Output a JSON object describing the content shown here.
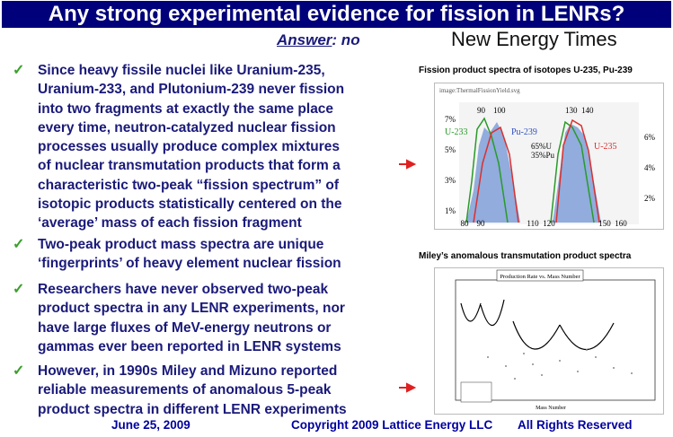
{
  "header": {
    "title": "Any strong experimental evidence for fission in LENRs?",
    "answer_label": "Answer",
    "answer_text": ": no",
    "logo": "New Energy Times"
  },
  "bullets": [
    {
      "lines": [
        "Since heavy fissile nuclei like Uranium-235,",
        "Uranium-233, and Plutonium-239 never fission",
        "into two fragments at exactly the same place",
        "every time, neutron-catalyzed nuclear fission",
        "processes usually produce complex mixtures",
        "of nuclear transmutation products that form a",
        "characteristic two-peak “fission spectrum” of",
        "isotopic products statistically centered on the",
        "‘average’ mass of each fission fragment"
      ]
    },
    {
      "lines": [
        "Two-peak product mass spectra are unique",
        "‘fingerprints’ of heavy element nuclear fission"
      ]
    },
    {
      "lines": [
        "Researchers have never observed two-peak",
        "product spectra in any LENR experiments, nor",
        "have large fluxes of MeV-energy neutrons or",
        "gammas ever been reported in LENR systems"
      ]
    },
    {
      "lines": [
        "However, in 1990s Miley and Mizuno reported",
        "reliable measurements of anomalous 5-peak",
        "product spectra in different LENR experiments"
      ]
    }
  ],
  "figures": [
    {
      "caption": "Fission product spectra of isotopes U-235, Pu-239",
      "image_title": "image:ThermalFissionYield.svg",
      "labels": [
        "90",
        "100",
        "130",
        "140",
        "U-233",
        "Pu-239",
        "65%U",
        "35%Pu",
        "U-235"
      ],
      "left_ticks": [
        "7%",
        "5%",
        "3%",
        "1%"
      ],
      "right_ticks": [
        "6%",
        "4%",
        "2%"
      ],
      "x_ticks": [
        "80",
        "90",
        "110",
        "120",
        "150",
        "160"
      ]
    },
    {
      "caption": "Miley’s anomalous transmutation product spectra",
      "image_title": "Production Rate vs. Mass Number",
      "x_label": "Mass Number"
    }
  ],
  "footer": {
    "date": "June 25, 2009",
    "copyright": "Copyright 2009 Lattice Energy LLC",
    "rights": "All Rights Reserved"
  }
}
